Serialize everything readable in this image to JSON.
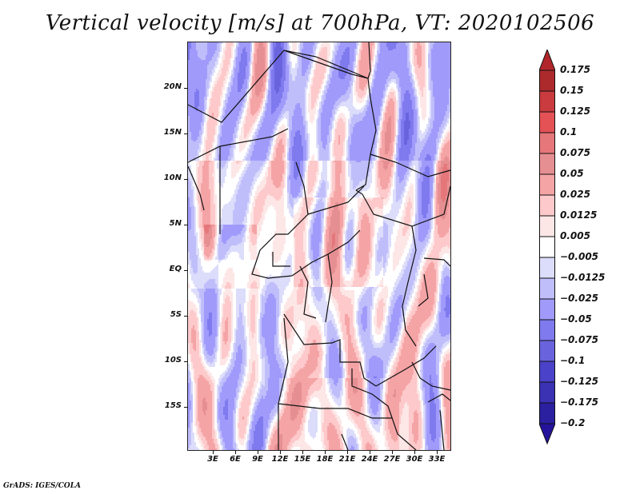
{
  "title": "Vertical velocity [m/s] at 700hPa, VT: 2020102506",
  "credit": "GrADS: IGES/COLA",
  "map": {
    "variable": "Vertical velocity",
    "units": "m/s",
    "level": "700hPa",
    "valid_time": "2020102506",
    "lon_range": [
      0,
      35
    ],
    "lat_range": [
      -20,
      25
    ],
    "lat_ticks": [
      {
        "label": "20N",
        "lat": 20
      },
      {
        "label": "15N",
        "lat": 15
      },
      {
        "label": "10N",
        "lat": 10
      },
      {
        "label": "5N",
        "lat": 5
      },
      {
        "label": "EQ",
        "lat": 0
      },
      {
        "label": "5S",
        "lat": -5
      },
      {
        "label": "10S",
        "lat": -10
      },
      {
        "label": "15S",
        "lat": -15
      }
    ],
    "lon_ticks": [
      {
        "label": "3E",
        "lon": 3
      },
      {
        "label": "6E",
        "lon": 6
      },
      {
        "label": "9E",
        "lon": 9
      },
      {
        "label": "12E",
        "lon": 12
      },
      {
        "label": "15E",
        "lon": 15
      },
      {
        "label": "18E",
        "lon": 18
      },
      {
        "label": "21E",
        "lon": 21
      },
      {
        "label": "24E",
        "lon": 24
      },
      {
        "label": "27E",
        "lon": 27
      },
      {
        "label": "30E",
        "lon": 30
      },
      {
        "label": "33E",
        "lon": 33
      }
    ]
  },
  "colorbar": {
    "orientation": "vertical",
    "extend": "both",
    "labels": [
      "0.175",
      "0.15",
      "0.125",
      "0.1",
      "0.075",
      "0.05",
      "0.025",
      "0.0125",
      "0.005",
      "−0.005",
      "−0.0125",
      "−0.025",
      "−0.05",
      "−0.075",
      "−0.1",
      "−0.125",
      "−0.175",
      "−0.2"
    ],
    "levels": [
      0.175,
      0.15,
      0.125,
      0.1,
      0.075,
      0.05,
      0.025,
      0.0125,
      0.005,
      -0.005,
      -0.0125,
      -0.025,
      -0.05,
      -0.075,
      -0.1,
      -0.125,
      -0.175,
      -0.2
    ],
    "colors": [
      "#b1262b",
      "#ad2a2c",
      "#c93b3e",
      "#e45256",
      "#e5777a",
      "#e68f92",
      "#f5a4a6",
      "#fdc9ca",
      "#fde6e6",
      "#ffffff",
      "#dcdcfb",
      "#c0befa",
      "#a09bfb",
      "#7f7aee",
      "#6a63de",
      "#4a42c8",
      "#3a31b3",
      "#2a20a0",
      "#25139c"
    ]
  }
}
